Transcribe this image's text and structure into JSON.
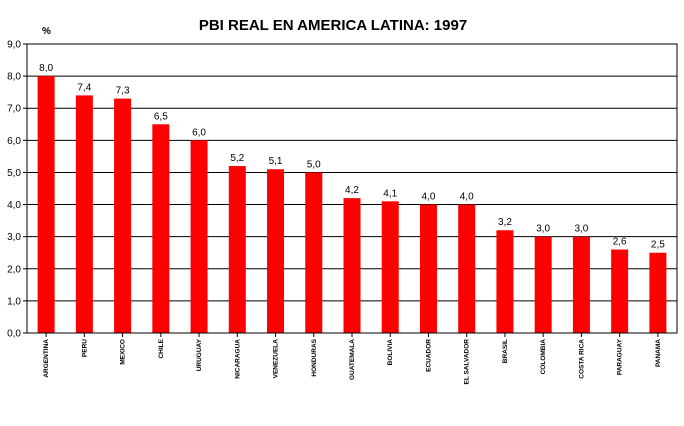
{
  "chart_data": {
    "type": "bar",
    "title": "PBI REAL EN AMERICA LATINA: 1997",
    "ylabel": "%",
    "xlabel": "",
    "ylim": [
      0,
      9
    ],
    "yticks": [
      "0,0",
      "1,0",
      "2,0",
      "3,0",
      "4,0",
      "5,0",
      "6,0",
      "7,0",
      "8,0",
      "9,0"
    ],
    "grid": true,
    "legend": "none",
    "bar_color": "#ff0000",
    "grid_color": "#000000",
    "categories": [
      "ARGENTINA",
      "PERU",
      "MEXICO",
      "CHILE",
      "URUGUAY",
      "NICARAGUA",
      "VENEZUELA",
      "HONDURAS",
      "GUATEMALA",
      "BOLIVIA",
      "ECUADOR",
      "EL SALVADOR",
      "BRASIL",
      "COLOMBIA",
      "COSTA RICA",
      "PARAGUAY",
      "PANAMA"
    ],
    "values": [
      8.0,
      7.4,
      7.3,
      6.5,
      6.0,
      5.2,
      5.1,
      5.0,
      4.2,
      4.1,
      4.0,
      4.0,
      3.2,
      3.0,
      3.0,
      2.6,
      2.5
    ],
    "data_labels": [
      "8,0",
      "7,4",
      "7,3",
      "6,5",
      "6,0",
      "5,2",
      "5,1",
      "5,0",
      "4,2",
      "4,1",
      "4,0",
      "4,0",
      "3,2",
      "3,0",
      "3,0",
      "2,6",
      "2,5"
    ]
  }
}
